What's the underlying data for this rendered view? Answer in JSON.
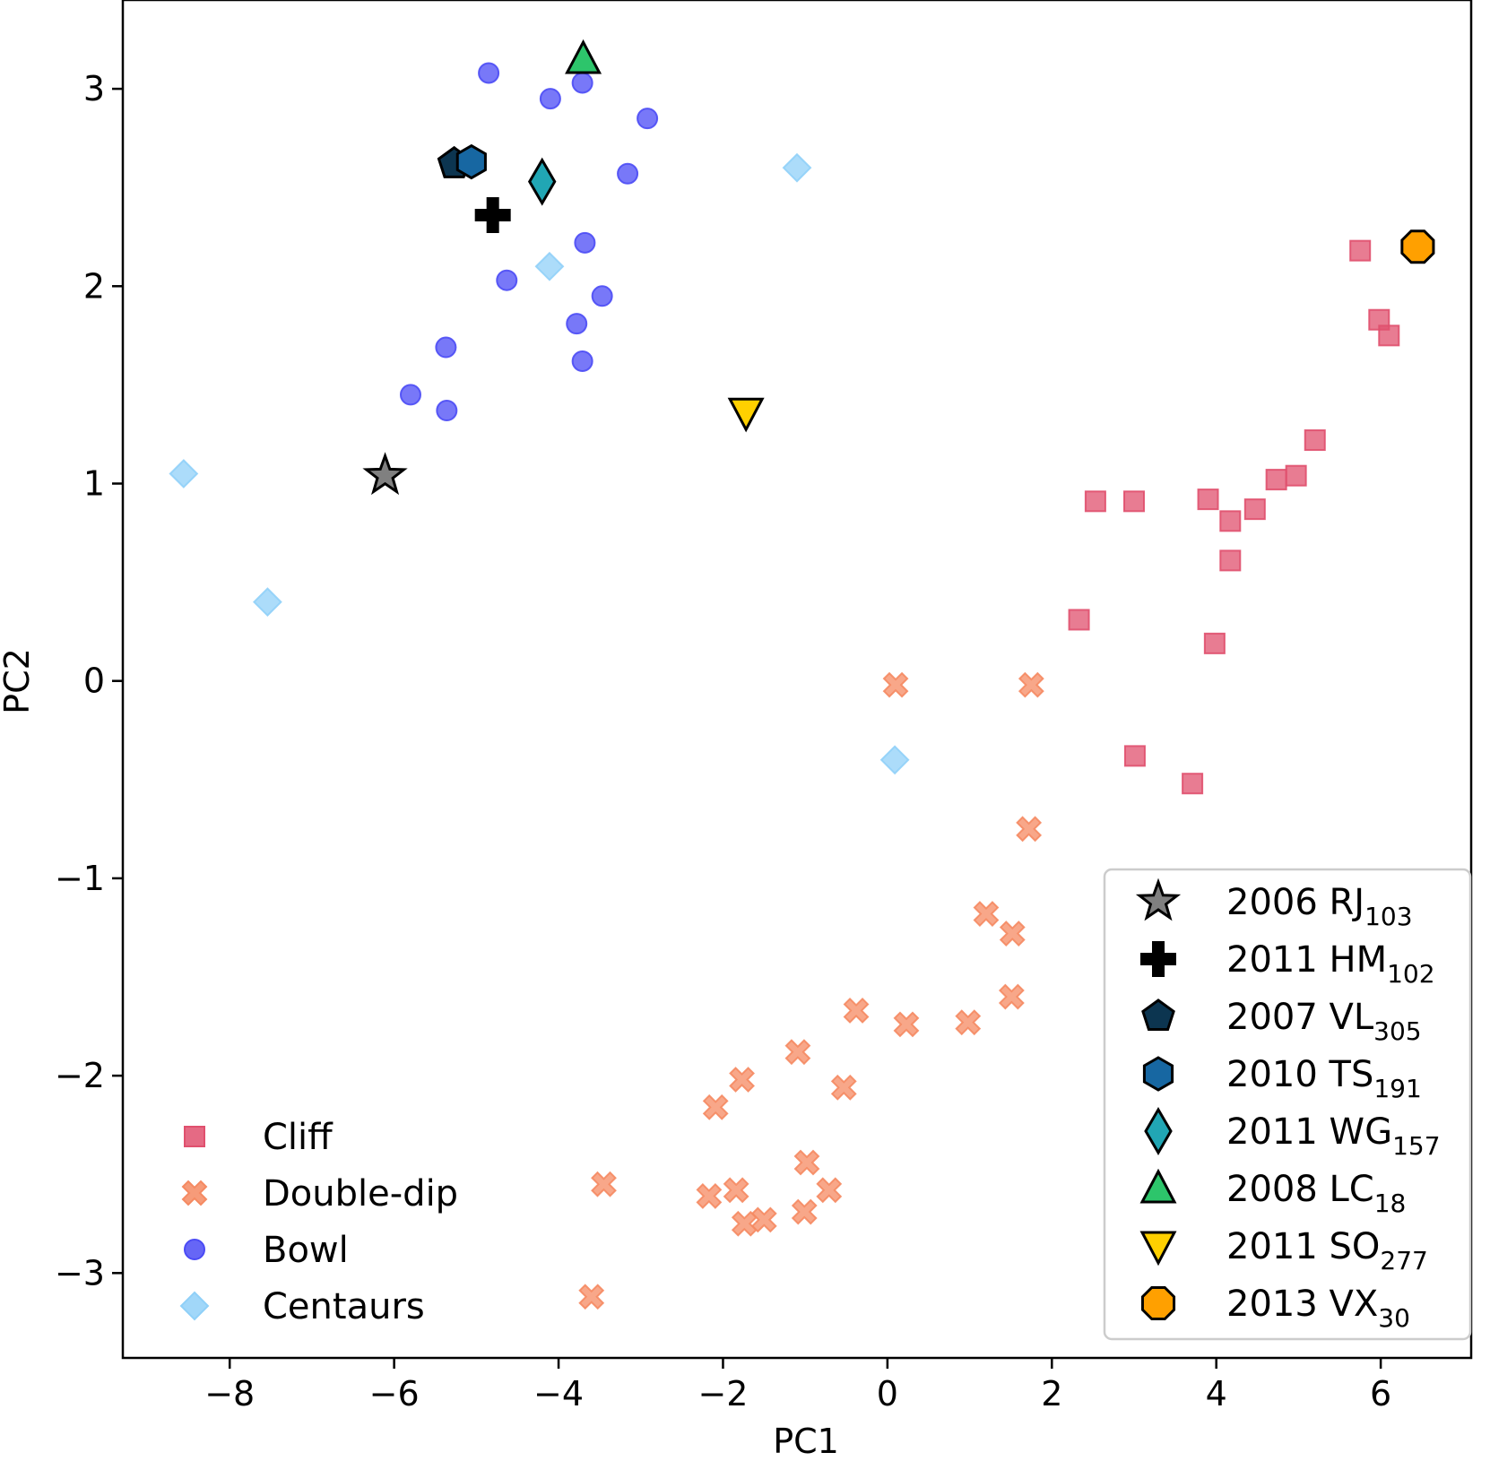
{
  "chart_data": {
    "type": "scatter",
    "title": "",
    "xlabel": "PC1",
    "ylabel": "PC2",
    "xlim": [
      -9.3,
      7.1
    ],
    "ylim": [
      -3.43,
      3.45
    ],
    "xticks": [
      -8,
      -6,
      -4,
      -2,
      0,
      2,
      4,
      6
    ],
    "yticks": [
      -3,
      -2,
      -1,
      0,
      1,
      2,
      3
    ],
    "grid": false,
    "series": [
      {
        "name": "Cliff",
        "marker": "square",
        "color": "#e0506e",
        "points": [
          [
            5.75,
            2.18
          ],
          [
            5.98,
            1.83
          ],
          [
            6.1,
            1.75
          ],
          [
            5.2,
            1.22
          ],
          [
            4.97,
            1.04
          ],
          [
            4.73,
            1.02
          ],
          [
            4.47,
            0.87
          ],
          [
            4.17,
            0.81
          ],
          [
            3.9,
            0.92
          ],
          [
            3.0,
            0.91
          ],
          [
            2.53,
            0.91
          ],
          [
            4.17,
            0.61
          ],
          [
            2.33,
            0.31
          ],
          [
            3.98,
            0.19
          ],
          [
            3.01,
            -0.38
          ],
          [
            3.71,
            -0.52
          ]
        ]
      },
      {
        "name": "Double-dip",
        "marker": "x",
        "color": "#f58a62",
        "points": [
          [
            0.1,
            -0.02
          ],
          [
            1.75,
            -0.02
          ],
          [
            1.72,
            -0.75
          ],
          [
            1.2,
            -1.18
          ],
          [
            1.52,
            -1.28
          ],
          [
            1.51,
            -1.6
          ],
          [
            -0.38,
            -1.67
          ],
          [
            0.23,
            -1.74
          ],
          [
            0.98,
            -1.73
          ],
          [
            -1.09,
            -1.88
          ],
          [
            -0.53,
            -2.06
          ],
          [
            -1.77,
            -2.02
          ],
          [
            -2.09,
            -2.16
          ],
          [
            -3.45,
            -2.55
          ],
          [
            -0.98,
            -2.44
          ],
          [
            -2.17,
            -2.61
          ],
          [
            -1.84,
            -2.58
          ],
          [
            -0.71,
            -2.58
          ],
          [
            -1.74,
            -2.75
          ],
          [
            -1.5,
            -2.73
          ],
          [
            -1.01,
            -2.69
          ],
          [
            -3.6,
            -3.12
          ]
        ]
      },
      {
        "name": "Bowl",
        "marker": "circle",
        "color": "#4b4bf5",
        "points": [
          [
            -4.85,
            3.08
          ],
          [
            -4.1,
            2.95
          ],
          [
            -3.71,
            3.03
          ],
          [
            -2.92,
            2.85
          ],
          [
            -3.16,
            2.57
          ],
          [
            -3.68,
            2.22
          ],
          [
            -4.63,
            2.03
          ],
          [
            -3.47,
            1.95
          ],
          [
            -3.78,
            1.81
          ],
          [
            -3.71,
            1.62
          ],
          [
            -5.37,
            1.69
          ],
          [
            -5.8,
            1.45
          ],
          [
            -5.36,
            1.37
          ]
        ]
      },
      {
        "name": "Centaurs",
        "marker": "diamond",
        "color": "#90d0f8",
        "points": [
          [
            -1.1,
            2.6
          ],
          [
            -4.11,
            2.1
          ],
          [
            -8.56,
            1.05
          ],
          [
            -7.54,
            0.4
          ],
          [
            0.09,
            -0.4
          ]
        ]
      }
    ],
    "highlighted_objects": [
      {
        "name": "2006 RJ",
        "sub": "103",
        "marker": "star",
        "color": "#808080",
        "x": -6.11,
        "y": 1.04
      },
      {
        "name": "2011 HM",
        "sub": "102",
        "marker": "plus",
        "color": "#000000",
        "x": -4.8,
        "y": 2.36
      },
      {
        "name": "2007 VL",
        "sub": "305",
        "marker": "pentagon",
        "color": "#0c3550",
        "x": -5.27,
        "y": 2.62
      },
      {
        "name": "2010 TS",
        "sub": "191",
        "marker": "hexagon",
        "color": "#1767a2",
        "x": -5.06,
        "y": 2.63
      },
      {
        "name": "2011 WG",
        "sub": "157",
        "marker": "thin_diamond",
        "color": "#21a6b4",
        "x": -4.2,
        "y": 2.53
      },
      {
        "name": "2008 LC",
        "sub": "18",
        "marker": "triangle_up",
        "color": "#2dc56b",
        "x": -3.7,
        "y": 3.15
      },
      {
        "name": "2011 SO",
        "sub": "277",
        "marker": "triangle_down",
        "color": "#ffd000",
        "x": -1.72,
        "y": 1.36
      },
      {
        "name": "2013 VX",
        "sub": "30",
        "marker": "octagon",
        "color": "#ffa000",
        "x": 6.45,
        "y": 2.2
      }
    ],
    "legends": {
      "classes": "lower-left",
      "objects": "lower-right"
    }
  }
}
